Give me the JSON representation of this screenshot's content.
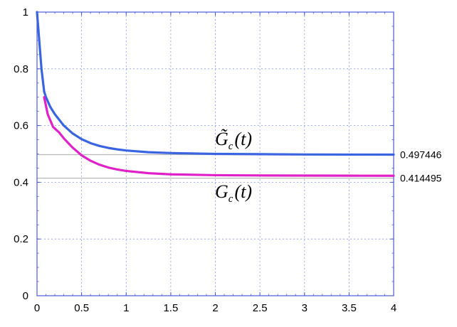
{
  "chart_data": {
    "type": "line",
    "title": "",
    "xlabel": "",
    "ylabel": "",
    "xlim": [
      0,
      4
    ],
    "ylim": [
      0,
      1
    ],
    "xticks": [
      "0",
      "0.5",
      "1",
      "1.5",
      "2",
      "2.5",
      "3",
      "3.5",
      "4"
    ],
    "yticks": [
      "0",
      "0.2",
      "0.4",
      "0.6",
      "0.8",
      "1"
    ],
    "grid": true,
    "series": [
      {
        "key": "gc_tilde",
        "label_main": "G̃",
        "label_sub": "c",
        "label_arg": "(t)",
        "color": "#3a64e0",
        "asymptote": 0.497446,
        "asymptote_label": "0.497446",
        "points": [
          [
            0,
            1.0
          ],
          [
            0.05,
            0.8
          ],
          [
            0.08,
            0.72
          ],
          [
            0.1,
            0.7
          ],
          [
            0.15,
            0.665
          ],
          [
            0.2,
            0.64
          ],
          [
            0.3,
            0.6
          ],
          [
            0.4,
            0.572
          ],
          [
            0.5,
            0.552
          ],
          [
            0.6,
            0.538
          ],
          [
            0.7,
            0.528
          ],
          [
            0.8,
            0.521
          ],
          [
            0.9,
            0.516
          ],
          [
            1.0,
            0.512
          ],
          [
            1.25,
            0.506
          ],
          [
            1.5,
            0.503
          ],
          [
            2.0,
            0.5
          ],
          [
            2.5,
            0.499
          ],
          [
            3.0,
            0.498
          ],
          [
            3.5,
            0.4977
          ],
          [
            4.0,
            0.4975
          ]
        ]
      },
      {
        "key": "gc",
        "label_main": "G",
        "label_sub": "c",
        "label_arg": "(t)",
        "color": "#e020c8",
        "asymptote": 0.414495,
        "asymptote_label": "0.414495",
        "points": [
          [
            0.08,
            0.7
          ],
          [
            0.12,
            0.64
          ],
          [
            0.18,
            0.595
          ],
          [
            0.25,
            0.575
          ],
          [
            0.3,
            0.555
          ],
          [
            0.4,
            0.522
          ],
          [
            0.5,
            0.495
          ],
          [
            0.6,
            0.476
          ],
          [
            0.7,
            0.462
          ],
          [
            0.8,
            0.452
          ],
          [
            0.9,
            0.445
          ],
          [
            1.0,
            0.44
          ],
          [
            1.25,
            0.432
          ],
          [
            1.5,
            0.428
          ],
          [
            2.0,
            0.425
          ],
          [
            2.5,
            0.424
          ],
          [
            3.0,
            0.4235
          ],
          [
            3.5,
            0.4232
          ],
          [
            4.0,
            0.423
          ]
        ]
      }
    ]
  }
}
